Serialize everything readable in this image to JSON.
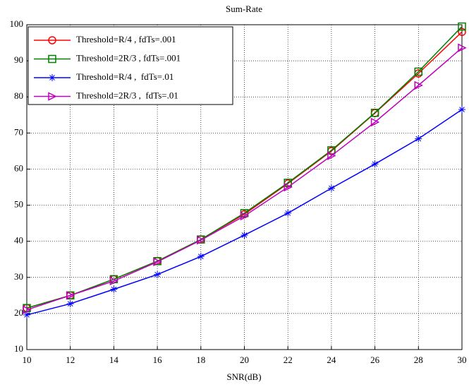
{
  "chart_data": {
    "type": "line",
    "title": "Sum-Rate",
    "x_label": "SNR(dB)",
    "x": [
      10,
      12,
      14,
      16,
      18,
      20,
      22,
      24,
      26,
      28,
      30
    ],
    "xlim": [
      10,
      30
    ],
    "xticks": [
      10,
      12,
      14,
      16,
      18,
      20,
      22,
      24,
      26,
      28,
      30
    ],
    "ylim": [
      10,
      100
    ],
    "yticks": [
      10,
      20,
      30,
      40,
      50,
      60,
      70,
      80,
      90,
      100
    ],
    "grid": true,
    "legend": "upper left",
    "series": [
      {
        "name": "Threshold=R/4 , fdTs=.001",
        "color": "#ff0000",
        "marker": "circle",
        "values": [
          21.5,
          25,
          29.5,
          34.5,
          40.5,
          47.5,
          56,
          65,
          75.5,
          86.5,
          98
        ]
      },
      {
        "name": "Threshold=2R/3 , fdTs=.001",
        "color": "#008000",
        "marker": "square",
        "values": [
          21.5,
          25,
          29.5,
          34.5,
          40.5,
          47.8,
          56.2,
          65.2,
          75.6,
          87,
          99.5
        ]
      },
      {
        "name": "Threshold=R/4 ,  fdTs=.01",
        "color": "#0000ff",
        "marker": "star",
        "values": [
          19.6,
          22.7,
          26.7,
          30.8,
          35.8,
          41.7,
          47.8,
          54.7,
          61.4,
          68.4,
          76.5
        ]
      },
      {
        "name": "Threshold=2R/3 ,  fdTs=.01",
        "color": "#bf00bf",
        "marker": "triangle-right",
        "values": [
          21,
          25,
          29,
          34.3,
          40.3,
          47,
          55,
          63.7,
          73,
          83.2,
          93.6
        ]
      }
    ]
  }
}
